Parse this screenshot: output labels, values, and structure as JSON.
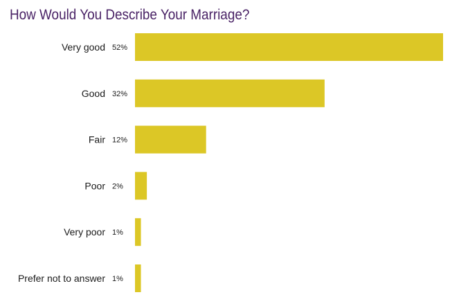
{
  "chart_data": {
    "type": "bar",
    "orientation": "horizontal",
    "title": "How Would You Describe Your Marriage?",
    "categories": [
      "Very good",
      "Good",
      "Fair",
      "Poor",
      "Very poor",
      "Prefer not to answer"
    ],
    "values": [
      52,
      32,
      12,
      2,
      1,
      1
    ],
    "value_labels": [
      "52%",
      "32%",
      "12%",
      "2%",
      "1%",
      "1%"
    ],
    "unit": "%",
    "xlim": [
      0,
      52
    ],
    "grid": false,
    "legend": "none",
    "colors": {
      "bar": "#dcc726",
      "title": "#4a2366",
      "text": "#1a1a1a"
    }
  }
}
